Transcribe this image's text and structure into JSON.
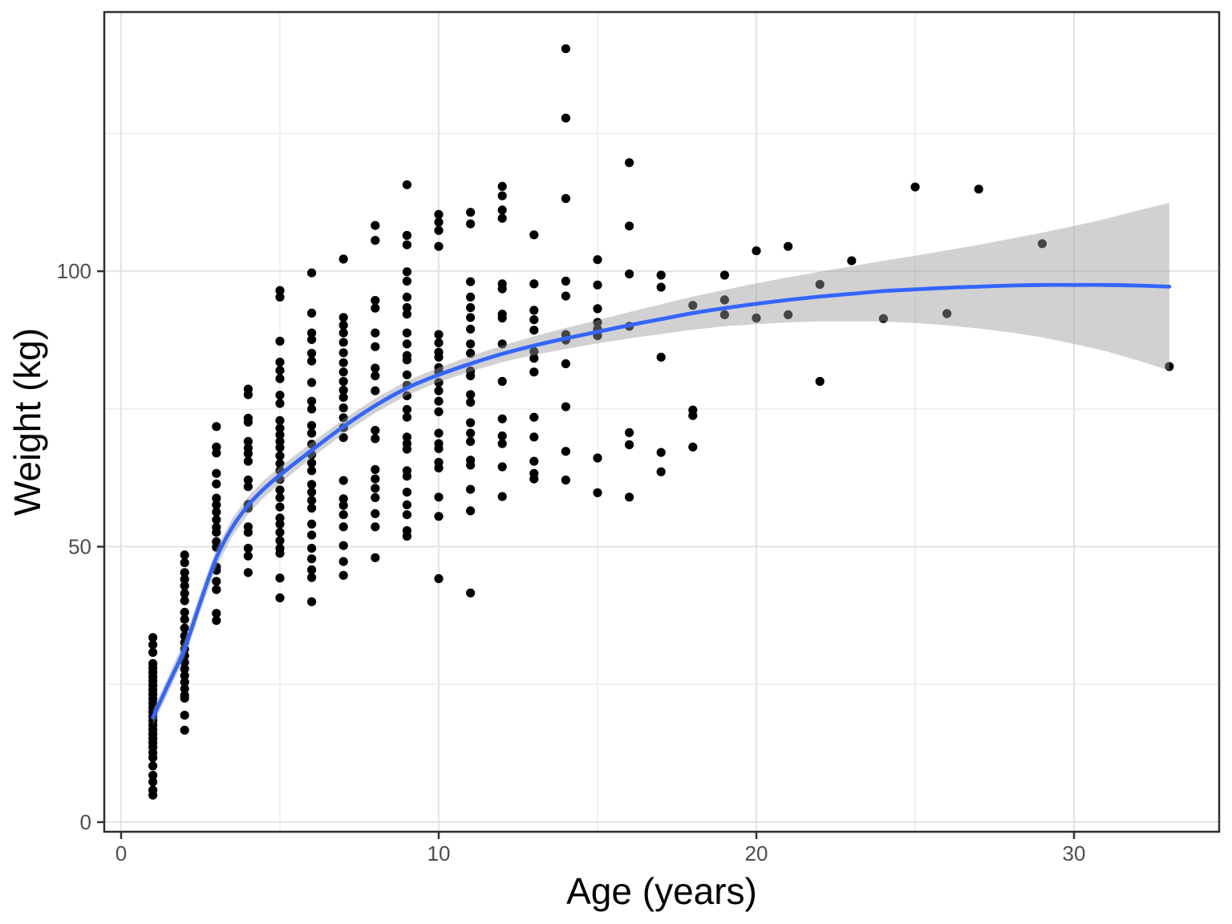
{
  "chart_data": {
    "type": "scatter",
    "title": "",
    "xlabel": "Age (years)",
    "ylabel": "Weight (kg)",
    "x_ticks": [
      0,
      10,
      20,
      30
    ],
    "y_ticks": [
      0,
      50,
      100
    ],
    "x_minor_gridlines": [
      5,
      15,
      25
    ],
    "y_minor_gridlines": [
      25,
      75,
      125
    ],
    "xlim": [
      -0.53,
      34.57
    ],
    "ylim": [
      -1.75,
      147.05
    ],
    "grid": true,
    "legend": "none",
    "points": [
      [
        1,
        33.5
      ],
      [
        1,
        32.2
      ],
      [
        1,
        30.8
      ],
      [
        1,
        28.8
      ],
      [
        1,
        28
      ],
      [
        1,
        27.2
      ],
      [
        1,
        26.4
      ],
      [
        1,
        25.6
      ],
      [
        1,
        24.8
      ],
      [
        1,
        24
      ],
      [
        1,
        23.2
      ],
      [
        1,
        22.4
      ],
      [
        1,
        21.6
      ],
      [
        1,
        20.8
      ],
      [
        1,
        20
      ],
      [
        1,
        19.2
      ],
      [
        1,
        18.4
      ],
      [
        1,
        17.6
      ],
      [
        1,
        16.8
      ],
      [
        1,
        16
      ],
      [
        1,
        15.2
      ],
      [
        1,
        14.4
      ],
      [
        1,
        13.6
      ],
      [
        1,
        12.6
      ],
      [
        1,
        11.7
      ],
      [
        1,
        10.2
      ],
      [
        1,
        8.5
      ],
      [
        1,
        7.3
      ],
      [
        1,
        5.8
      ],
      [
        1,
        4.9
      ],
      [
        2,
        48.5
      ],
      [
        2,
        47.1
      ],
      [
        2,
        45.3
      ],
      [
        2,
        44.1
      ],
      [
        2,
        42.9
      ],
      [
        2,
        41.5
      ],
      [
        2,
        40.2
      ],
      [
        2,
        38.1
      ],
      [
        2,
        36.8
      ],
      [
        2,
        35.2
      ],
      [
        2,
        33.8
      ],
      [
        2,
        32.6
      ],
      [
        2,
        31.4
      ],
      [
        2,
        30.2
      ],
      [
        2,
        29
      ],
      [
        2,
        27.8
      ],
      [
        2,
        26.6
      ],
      [
        2,
        25.4
      ],
      [
        2,
        24.2
      ],
      [
        2,
        23
      ],
      [
        2,
        22.5
      ],
      [
        2,
        19.4
      ],
      [
        2,
        16.7
      ],
      [
        3,
        71.8
      ],
      [
        3,
        68.1
      ],
      [
        3,
        67
      ],
      [
        3,
        63.3
      ],
      [
        3,
        61.4
      ],
      [
        3,
        58.8
      ],
      [
        3,
        57.6
      ],
      [
        3,
        56.3
      ],
      [
        3,
        54.9
      ],
      [
        3,
        53.5
      ],
      [
        3,
        52.6
      ],
      [
        3,
        50.9
      ],
      [
        3,
        49.9
      ],
      [
        3,
        46.3
      ],
      [
        3,
        45.7
      ],
      [
        3,
        43.7
      ],
      [
        3,
        42.2
      ],
      [
        3,
        37.9
      ],
      [
        3,
        36.6
      ],
      [
        4,
        78.6
      ],
      [
        4,
        77.6
      ],
      [
        4,
        73.3
      ],
      [
        4,
        72.6
      ],
      [
        4,
        69.1
      ],
      [
        4,
        67.9
      ],
      [
        4,
        66.9
      ],
      [
        4,
        65.5
      ],
      [
        4,
        62.1
      ],
      [
        4,
        60.9
      ],
      [
        4,
        57.7
      ],
      [
        4,
        57
      ],
      [
        4,
        53.6
      ],
      [
        4,
        52.6
      ],
      [
        4,
        49.7
      ],
      [
        4,
        48.3
      ],
      [
        4,
        45.3
      ],
      [
        5,
        96.5
      ],
      [
        5,
        95.3
      ],
      [
        5,
        87.3
      ],
      [
        5,
        83.5
      ],
      [
        5,
        82
      ],
      [
        5,
        80.5
      ],
      [
        5,
        77.5
      ],
      [
        5,
        76
      ],
      [
        5,
        72.9
      ],
      [
        5,
        71.5
      ],
      [
        5,
        70.3
      ],
      [
        5,
        69.1
      ],
      [
        5,
        68
      ],
      [
        5,
        66.5
      ],
      [
        5,
        65.1
      ],
      [
        5,
        63.8
      ],
      [
        5,
        62.2
      ],
      [
        5,
        60.3
      ],
      [
        5,
        58.9
      ],
      [
        5,
        57.2
      ],
      [
        5,
        55.2
      ],
      [
        5,
        54.1
      ],
      [
        5,
        52.6
      ],
      [
        5,
        51.1
      ],
      [
        5,
        49.7
      ],
      [
        5,
        48.8
      ],
      [
        5,
        44.3
      ],
      [
        5,
        40.7
      ],
      [
        6,
        99.7
      ],
      [
        6,
        92.4
      ],
      [
        6,
        88.8
      ],
      [
        6,
        87.6
      ],
      [
        6,
        85.1
      ],
      [
        6,
        83.7
      ],
      [
        6,
        79.8
      ],
      [
        6,
        76.4
      ],
      [
        6,
        75
      ],
      [
        6,
        72
      ],
      [
        6,
        70.6
      ],
      [
        6,
        68.6
      ],
      [
        6,
        66.7
      ],
      [
        6,
        65.2
      ],
      [
        6,
        63.8
      ],
      [
        6,
        61.3
      ],
      [
        6,
        59.9
      ],
      [
        6,
        58.4
      ],
      [
        6,
        57
      ],
      [
        6,
        54.1
      ],
      [
        6,
        52.1
      ],
      [
        6,
        49.7
      ],
      [
        6,
        47.8
      ],
      [
        6,
        45.8
      ],
      [
        6,
        44.4
      ],
      [
        6,
        40
      ],
      [
        7,
        102.2
      ],
      [
        7,
        91.6
      ],
      [
        7,
        90.2
      ],
      [
        7,
        88.8
      ],
      [
        7,
        87.1
      ],
      [
        7,
        85.2
      ],
      [
        7,
        83.4
      ],
      [
        7,
        81.7
      ],
      [
        7,
        80
      ],
      [
        7,
        78.4
      ],
      [
        7,
        77.1
      ],
      [
        7,
        75.2
      ],
      [
        7,
        73.4
      ],
      [
        7,
        71.6
      ],
      [
        7,
        69.8
      ],
      [
        7,
        62
      ],
      [
        7,
        58.7
      ],
      [
        7,
        57.5
      ],
      [
        7,
        55.8
      ],
      [
        7,
        53.6
      ],
      [
        7,
        50.2
      ],
      [
        7,
        47.3
      ],
      [
        7,
        44.8
      ],
      [
        8,
        108.3
      ],
      [
        8,
        105.6
      ],
      [
        8,
        94.7
      ],
      [
        8,
        93.3
      ],
      [
        8,
        88.8
      ],
      [
        8,
        86.3
      ],
      [
        8,
        82.4
      ],
      [
        8,
        81
      ],
      [
        8,
        78.3
      ],
      [
        8,
        71.1
      ],
      [
        8,
        69.6
      ],
      [
        8,
        64
      ],
      [
        8,
        62.3
      ],
      [
        8,
        60.6
      ],
      [
        8,
        58.9
      ],
      [
        8,
        56
      ],
      [
        8,
        53.6
      ],
      [
        8,
        48
      ],
      [
        9,
        115.7
      ],
      [
        9,
        106.5
      ],
      [
        9,
        104.8
      ],
      [
        9,
        99.9
      ],
      [
        9,
        98.2
      ],
      [
        9,
        95.3
      ],
      [
        9,
        93.4
      ],
      [
        9,
        92.2
      ],
      [
        9,
        88.8
      ],
      [
        9,
        86.8
      ],
      [
        9,
        84.7
      ],
      [
        9,
        83.9
      ],
      [
        9,
        81.2
      ],
      [
        9,
        79.3
      ],
      [
        9,
        77.4
      ],
      [
        9,
        74.9
      ],
      [
        9,
        73.5
      ],
      [
        9,
        69.9
      ],
      [
        9,
        68.7
      ],
      [
        9,
        67.7
      ],
      [
        9,
        63.8
      ],
      [
        9,
        62.8
      ],
      [
        9,
        59.9
      ],
      [
        9,
        57.6
      ],
      [
        9,
        55.8
      ],
      [
        9,
        52.9
      ],
      [
        9,
        51.9
      ],
      [
        10,
        110.3
      ],
      [
        10,
        108.9
      ],
      [
        10,
        107.4
      ],
      [
        10,
        104.5
      ],
      [
        10,
        88.5
      ],
      [
        10,
        87
      ],
      [
        10,
        85.3
      ],
      [
        10,
        84.4
      ],
      [
        10,
        82.5
      ],
      [
        10,
        81.7
      ],
      [
        10,
        79.8
      ],
      [
        10,
        78.3
      ],
      [
        10,
        76.4
      ],
      [
        10,
        74.5
      ],
      [
        10,
        70.6
      ],
      [
        10,
        68.7
      ],
      [
        10,
        67.8
      ],
      [
        10,
        65.3
      ],
      [
        10,
        64.3
      ],
      [
        10,
        59
      ],
      [
        10,
        55.5
      ],
      [
        10,
        44.2
      ],
      [
        11,
        110.7
      ],
      [
        11,
        108.6
      ],
      [
        11,
        98.1
      ],
      [
        11,
        95.3
      ],
      [
        11,
        93.4
      ],
      [
        11,
        91.6
      ],
      [
        11,
        89.5
      ],
      [
        11,
        86.8
      ],
      [
        11,
        85.1
      ],
      [
        11,
        81.9
      ],
      [
        11,
        81
      ],
      [
        11,
        77.6
      ],
      [
        11,
        76.2
      ],
      [
        11,
        72.5
      ],
      [
        11,
        70.6
      ],
      [
        11,
        69.1
      ],
      [
        11,
        65.7
      ],
      [
        11,
        64.8
      ],
      [
        11,
        60.4
      ],
      [
        11,
        56.5
      ],
      [
        11,
        41.6
      ],
      [
        12,
        115.4
      ],
      [
        12,
        113.7
      ],
      [
        12,
        111.1
      ],
      [
        12,
        109.6
      ],
      [
        12,
        97.7
      ],
      [
        12,
        96.8
      ],
      [
        12,
        92.2
      ],
      [
        12,
        91.5
      ],
      [
        12,
        86.8
      ],
      [
        12,
        80
      ],
      [
        12,
        73.2
      ],
      [
        12,
        70.1
      ],
      [
        12,
        68.7
      ],
      [
        12,
        64.5
      ],
      [
        12,
        59.1
      ],
      [
        13,
        106.6
      ],
      [
        13,
        97.7
      ],
      [
        13,
        92.9
      ],
      [
        13,
        91.2
      ],
      [
        13,
        89.3
      ],
      [
        13,
        85.4
      ],
      [
        13,
        84.2
      ],
      [
        13,
        81.7
      ],
      [
        13,
        73.5
      ],
      [
        13,
        69.9
      ],
      [
        13,
        65.5
      ],
      [
        13,
        63.3
      ],
      [
        13,
        62.3
      ],
      [
        14,
        140.4
      ],
      [
        14,
        127.8
      ],
      [
        14,
        113.2
      ],
      [
        14,
        98.2
      ],
      [
        14,
        95.5
      ],
      [
        14,
        88.5
      ],
      [
        14,
        87.5
      ],
      [
        14,
        83.2
      ],
      [
        14,
        75.4
      ],
      [
        14,
        67.3
      ],
      [
        14,
        62.1
      ],
      [
        15,
        102.1
      ],
      [
        15,
        97.5
      ],
      [
        15,
        93.2
      ],
      [
        15,
        90.7
      ],
      [
        15,
        89.5
      ],
      [
        15,
        88.3
      ],
      [
        15,
        66.1
      ],
      [
        15,
        59.8
      ],
      [
        16,
        119.7
      ],
      [
        16,
        108.2
      ],
      [
        16,
        99.5
      ],
      [
        16,
        90
      ],
      [
        16,
        70.7
      ],
      [
        16,
        68.5
      ],
      [
        16,
        59
      ],
      [
        17,
        99.3
      ],
      [
        17,
        97.1
      ],
      [
        17,
        84.4
      ],
      [
        17,
        67.1
      ],
      [
        17,
        63.6
      ],
      [
        18,
        93.8
      ],
      [
        18,
        74.8
      ],
      [
        18,
        73.8
      ],
      [
        18,
        68.1
      ],
      [
        19,
        99.3
      ],
      [
        19,
        94.8
      ],
      [
        19,
        92.1
      ],
      [
        20,
        103.7
      ],
      [
        20,
        91.5
      ],
      [
        21,
        104.5
      ],
      [
        21,
        92.1
      ],
      [
        22,
        97.6
      ],
      [
        22,
        80
      ],
      [
        23,
        101.9
      ],
      [
        24,
        91.4
      ],
      [
        25,
        115.3
      ],
      [
        26,
        92.3
      ],
      [
        27,
        114.9
      ],
      [
        29,
        105
      ],
      [
        33,
        82.7
      ]
    ],
    "smooth": {
      "method": "loess",
      "anchors": [
        [
          1,
          19.0
        ],
        [
          1.5,
          25.2
        ],
        [
          2,
          31.5
        ],
        [
          2.5,
          40.0
        ],
        [
          3,
          48.0
        ],
        [
          3.5,
          53.5
        ],
        [
          4,
          57.5
        ],
        [
          4.5,
          60.5
        ],
        [
          5,
          63.0
        ],
        [
          6,
          67.5
        ],
        [
          7,
          71.8
        ],
        [
          8,
          75.6
        ],
        [
          9,
          78.8
        ],
        [
          10,
          81.2
        ],
        [
          11,
          83.2
        ],
        [
          12,
          85.0
        ],
        [
          13,
          86.5
        ],
        [
          14,
          87.8
        ],
        [
          15,
          89.0
        ],
        [
          16,
          90.2
        ],
        [
          17,
          91.3
        ],
        [
          18,
          92.4
        ],
        [
          19,
          93.3
        ],
        [
          20,
          94.1
        ],
        [
          21,
          94.8
        ],
        [
          22,
          95.4
        ],
        [
          23,
          95.9
        ],
        [
          24,
          96.4
        ],
        [
          25,
          96.7
        ],
        [
          26,
          97.0
        ],
        [
          27,
          97.2
        ],
        [
          28,
          97.4
        ],
        [
          29,
          97.5
        ],
        [
          30,
          97.5
        ],
        [
          31,
          97.5
        ],
        [
          32,
          97.4
        ],
        [
          33,
          97.2
        ]
      ],
      "ribbon_half_width": [
        [
          1,
          1.4
        ],
        [
          2,
          1.6
        ],
        [
          3,
          1.7
        ],
        [
          4,
          1.6
        ],
        [
          5,
          1.5
        ],
        [
          6,
          1.4
        ],
        [
          7,
          1.3
        ],
        [
          8,
          1.3
        ],
        [
          9,
          1.3
        ],
        [
          10,
          1.3
        ],
        [
          11,
          1.4
        ],
        [
          12,
          1.5
        ],
        [
          13,
          1.7
        ],
        [
          14,
          1.9
        ],
        [
          15,
          2.1
        ],
        [
          16,
          2.4
        ],
        [
          17,
          2.7
        ],
        [
          18,
          3.0
        ],
        [
          19,
          3.3
        ],
        [
          20,
          3.7
        ],
        [
          21,
          4.1
        ],
        [
          22,
          4.5
        ],
        [
          23,
          5.0
        ],
        [
          24,
          5.5
        ],
        [
          25,
          6.1
        ],
        [
          26,
          6.8
        ],
        [
          27,
          7.6
        ],
        [
          28,
          8.5
        ],
        [
          29,
          9.5
        ],
        [
          30,
          10.7
        ],
        [
          31,
          12.0
        ],
        [
          32,
          13.6
        ],
        [
          33,
          15.2
        ]
      ]
    },
    "colors": {
      "point": "#000000",
      "smooth_line": "#3366FF",
      "ribbon": "rgba(153,153,153,0.45)",
      "grid_major": "#E4E4E4",
      "grid_minor": "#F0F0F0",
      "panel_border": "#2F2F2F",
      "tick_mark": "#333333",
      "tick_label": "#4D4D4D",
      "axis_title": "#000000",
      "background": "#FFFFFF"
    }
  }
}
